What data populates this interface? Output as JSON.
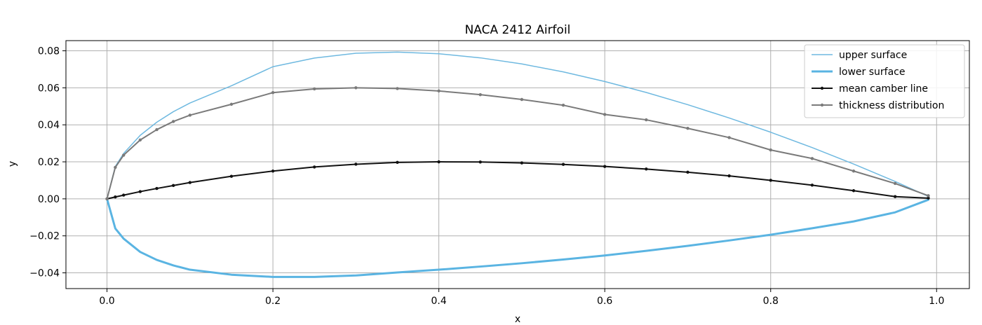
{
  "chart_data": {
    "type": "line",
    "title": "NACA 2412 Airfoil",
    "xlabel": "x",
    "ylabel": "y",
    "xlim": [
      -0.0495,
      1.0395
    ],
    "ylim": [
      -0.0485,
      0.0855
    ],
    "xticks": [
      0.0,
      0.2,
      0.4,
      0.6,
      0.8,
      1.0
    ],
    "xtick_labels": [
      "0.0",
      "0.2",
      "0.4",
      "0.6",
      "0.8",
      "1.0"
    ],
    "yticks": [
      -0.04,
      -0.02,
      0.0,
      0.02,
      0.04,
      0.06,
      0.08
    ],
    "ytick_labels": [
      "−0.04",
      "−0.02",
      "0.00",
      "0.02",
      "0.04",
      "0.06",
      "0.08"
    ],
    "grid": true,
    "legend_position": "upper-right",
    "series": [
      {
        "name": "upper surface",
        "color": "#6fb9e0",
        "style": "thin",
        "x": [
          0.0,
          0.01,
          0.02,
          0.04,
          0.06,
          0.08,
          0.1,
          0.15,
          0.2,
          0.25,
          0.3,
          0.35,
          0.4,
          0.45,
          0.5,
          0.55,
          0.6,
          0.65,
          0.7,
          0.75,
          0.8,
          0.85,
          0.9,
          0.95,
          0.99
        ],
        "y": [
          0.0,
          0.0175,
          0.0245,
          0.0343,
          0.0414,
          0.0471,
          0.0518,
          0.0611,
          0.0714,
          0.0761,
          0.0787,
          0.0793,
          0.0784,
          0.0762,
          0.0729,
          0.0686,
          0.0634,
          0.0575,
          0.0509,
          0.0437,
          0.036,
          0.0277,
          0.0188,
          0.0094,
          0.0013
        ]
      },
      {
        "name": "lower surface",
        "color": "#5ab4e2",
        "style": "thick",
        "x": [
          0.0,
          0.01,
          0.02,
          0.04,
          0.06,
          0.08,
          0.1,
          0.15,
          0.2,
          0.25,
          0.3,
          0.35,
          0.4,
          0.45,
          0.5,
          0.55,
          0.6,
          0.65,
          0.7,
          0.75,
          0.8,
          0.85,
          0.9,
          0.95,
          0.99
        ],
        "y": [
          0.0,
          -0.016,
          -0.0215,
          -0.0287,
          -0.033,
          -0.036,
          -0.0383,
          -0.041,
          -0.0422,
          -0.0422,
          -0.0414,
          -0.0398,
          -0.0383,
          -0.0366,
          -0.0348,
          -0.0328,
          -0.0306,
          -0.0281,
          -0.0254,
          -0.0225,
          -0.0194,
          -0.0159,
          -0.0122,
          -0.0073,
          -0.0005
        ]
      },
      {
        "name": "mean camber line",
        "color": "#111111",
        "style": "markers",
        "x": [
          0.0,
          0.01,
          0.02,
          0.04,
          0.06,
          0.08,
          0.1,
          0.15,
          0.2,
          0.25,
          0.3,
          0.35,
          0.4,
          0.45,
          0.5,
          0.55,
          0.6,
          0.65,
          0.7,
          0.75,
          0.8,
          0.85,
          0.9,
          0.95,
          0.99
        ],
        "y": [
          0.0,
          0.001,
          0.002,
          0.0039,
          0.0056,
          0.0072,
          0.0088,
          0.0122,
          0.015,
          0.0172,
          0.0187,
          0.0197,
          0.02,
          0.0199,
          0.0194,
          0.0186,
          0.0175,
          0.0161,
          0.0144,
          0.0124,
          0.01,
          0.0074,
          0.0044,
          0.0012,
          0.0004
        ]
      },
      {
        "name": "thickness distribution",
        "color": "#7a7a7a",
        "style": "markers",
        "x": [
          0.0,
          0.01,
          0.02,
          0.04,
          0.06,
          0.08,
          0.1,
          0.15,
          0.2,
          0.25,
          0.3,
          0.35,
          0.4,
          0.45,
          0.5,
          0.55,
          0.6,
          0.65,
          0.7,
          0.75,
          0.8,
          0.85,
          0.9,
          0.95,
          0.99
        ],
        "y": [
          0.0,
          0.017,
          0.0236,
          0.0318,
          0.0374,
          0.0418,
          0.0452,
          0.0511,
          0.0574,
          0.0594,
          0.06,
          0.0596,
          0.0583,
          0.0563,
          0.0537,
          0.0506,
          0.0456,
          0.0427,
          0.0381,
          0.0331,
          0.0264,
          0.0218,
          0.015,
          0.0083,
          0.0017
        ]
      }
    ]
  }
}
